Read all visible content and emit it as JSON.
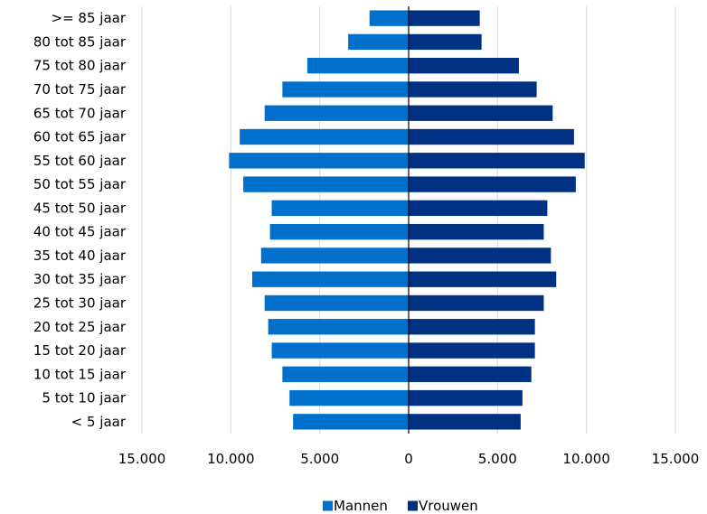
{
  "chart_data": {
    "type": "bar",
    "orientation": "horizontal",
    "layout": "population-pyramid",
    "title": "",
    "xlabel": "",
    "ylabel": "",
    "categories": [
      ">= 85 jaar",
      "80 tot 85 jaar",
      "75 tot 80 jaar",
      "70 tot 75 jaar",
      "65 tot 70 jaar",
      "60 tot 65 jaar",
      "55 tot 60 jaar",
      "50 tot 55 jaar",
      "45 tot 50 jaar",
      "40 tot 45 jaar",
      "35 tot 40 jaar",
      "30 tot 35 jaar",
      "25 tot 30 jaar",
      "20 tot 25 jaar",
      "15 tot 20 jaar",
      "10 tot 15 jaar",
      "5 tot 10 jaar",
      "< 5 jaar"
    ],
    "series": [
      {
        "name": "Mannen",
        "color": "#0070CC",
        "side": "left",
        "values": [
          2200,
          3400,
          5700,
          7100,
          8100,
          9500,
          10100,
          9300,
          7700,
          7800,
          8300,
          8800,
          8100,
          7900,
          7700,
          7100,
          6700,
          6500
        ]
      },
      {
        "name": "Vrouwen",
        "color": "#003082",
        "side": "right",
        "values": [
          4000,
          4100,
          6200,
          7200,
          8100,
          9300,
          9900,
          9400,
          7800,
          7600,
          8000,
          8300,
          7600,
          7100,
          7100,
          6900,
          6400,
          6300
        ]
      }
    ],
    "xlim": [
      -15000,
      15000
    ],
    "x_ticks": [
      -15000,
      -10000,
      -5000,
      0,
      5000,
      10000,
      15000
    ],
    "x_tick_labels": [
      "15.000",
      "10.000",
      "5.000",
      "0",
      "5.000",
      "10.000",
      "15.000"
    ],
    "grid": {
      "vertical": true,
      "horizontal": false,
      "color": "#d9d9d9"
    },
    "legend": {
      "position": "bottom-center",
      "entries": [
        "Mannen",
        "Vrouwen"
      ]
    }
  }
}
